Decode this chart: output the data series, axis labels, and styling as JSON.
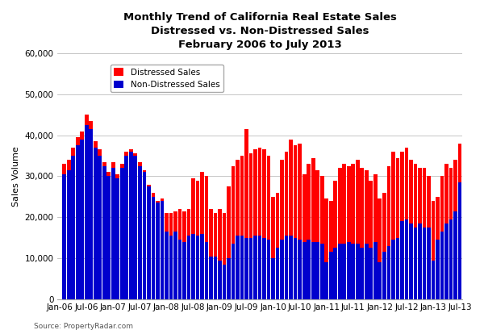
{
  "title_line1": "Monthly Trend of California Real Estate Sales",
  "title_line2": "Distressed vs. Non-Distressed Sales",
  "title_line3": "February 2006 to July 2013",
  "ylabel": "Sales Volume",
  "source": "Source: PropertyRadar.com",
  "legend_labels": [
    "Distressed Sales",
    "Non-Distressed Sales"
  ],
  "distressed_color": "#FF0000",
  "non_distressed_color": "#0000CD",
  "ylim": [
    0,
    60000
  ],
  "yticks": [
    0,
    10000,
    20000,
    30000,
    40000,
    50000,
    60000
  ],
  "xtick_labels": [
    "Jan-06",
    "Jul-06",
    "Jan-07",
    "Jul-07",
    "Jan-08",
    "Jul-08",
    "Jan-09",
    "Jul-09",
    "Jan-10",
    "Jul-10",
    "Jan-11",
    "Jul-11",
    "Jan-12",
    "Jul-12",
    "Jan-13",
    "Jul-13"
  ],
  "xtick_positions": [
    -1,
    5,
    11,
    17,
    23,
    29,
    35,
    41,
    47,
    53,
    59,
    65,
    71,
    77,
    83,
    89
  ],
  "non_distressed": [
    30500,
    31500,
    35000,
    37500,
    39000,
    42500,
    41500,
    37000,
    35000,
    32500,
    30000,
    32000,
    29500,
    32000,
    35000,
    36000,
    35000,
    32500,
    31000,
    27500,
    25000,
    23500,
    24000,
    16500,
    15500,
    16500,
    14500,
    14000,
    15500,
    16000,
    15500,
    16000,
    14000,
    10500,
    10500,
    9500,
    8500,
    10000,
    13500,
    15500,
    15500,
    15000,
    15000,
    15500,
    15500,
    15000,
    14500,
    10000,
    12500,
    14500,
    15500,
    15500,
    15000,
    14500,
    14000,
    14500,
    14000,
    14000,
    13500,
    9000,
    11500,
    12500,
    13500,
    13500,
    14000,
    13500,
    13500,
    12500,
    13500,
    12500,
    14000,
    9000,
    11500,
    13000,
    14500,
    15000,
    19000,
    19500,
    18500,
    17500,
    18500,
    17500,
    17500,
    9500,
    14500,
    16500,
    18500,
    19500,
    21500,
    28500
  ],
  "distressed": [
    2500,
    2500,
    2000,
    2000,
    2000,
    2500,
    2000,
    1500,
    1500,
    1000,
    1000,
    1500,
    1000,
    1000,
    1000,
    500,
    500,
    1000,
    500,
    500,
    1000,
    500,
    500,
    4500,
    5500,
    5000,
    7500,
    7500,
    6500,
    13500,
    13500,
    15000,
    16000,
    11500,
    10500,
    12500,
    12500,
    17500,
    19000,
    18500,
    19500,
    26500,
    20500,
    21000,
    21500,
    21500,
    20500,
    15000,
    13500,
    19500,
    20500,
    23500,
    22500,
    23500,
    16500,
    18500,
    20500,
    17500,
    16500,
    15500,
    12500,
    16500,
    18500,
    19500,
    18500,
    19500,
    20500,
    19500,
    18000,
    16500,
    16500,
    15500,
    14500,
    19500,
    21500,
    19500,
    17000,
    17500,
    15500,
    15500,
    13500,
    14500,
    12500,
    14500,
    10500,
    13500,
    14500,
    12500,
    12500,
    9500
  ]
}
